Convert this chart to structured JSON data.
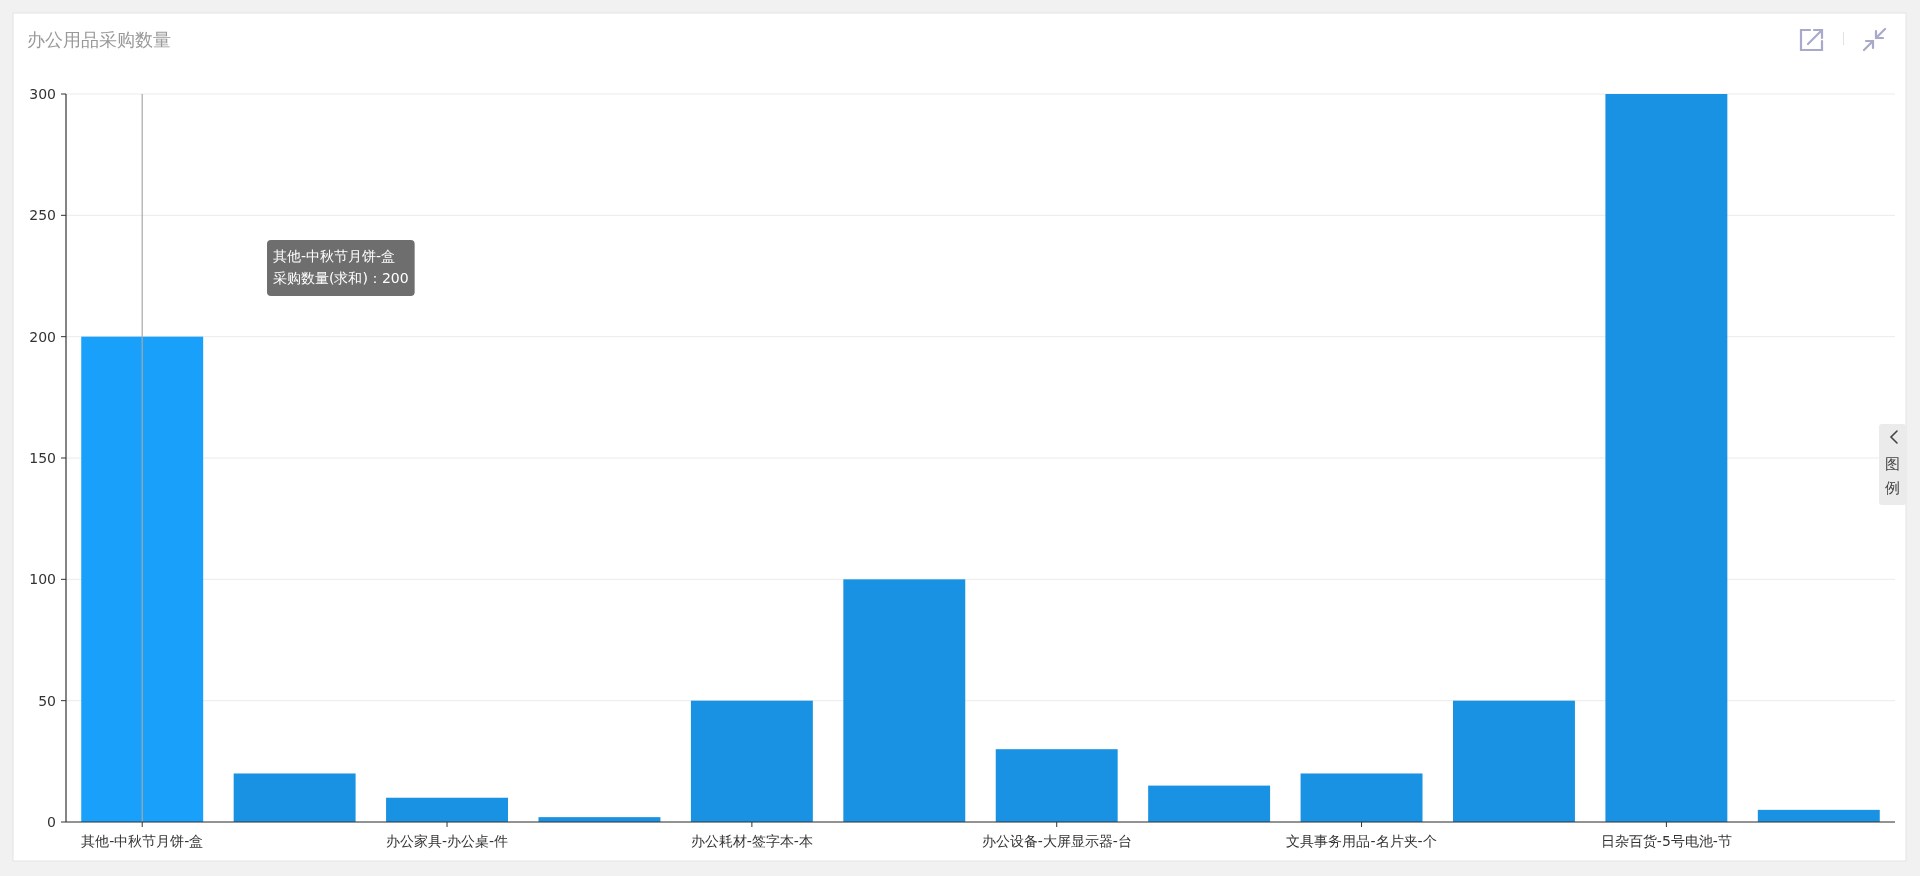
{
  "chart_data": {
    "type": "bar",
    "title": "办公用品采购数量",
    "categories": [
      "其他-中秋节月饼-盒",
      null,
      "办公家具-办公桌-件",
      null,
      "办公耗材-签字本-本",
      null,
      "办公设备-大屏显示器-台",
      null,
      "文具事务用品-名片夹-个",
      null,
      "日杂百货-5号电池-节",
      null
    ],
    "values": [
      200,
      20,
      10,
      2,
      50,
      100,
      30,
      15,
      20,
      50,
      300,
      5
    ],
    "colors": [
      "#18a0fb",
      "#1a92e3",
      "#1a92e3",
      "#1a92e3",
      "#1a92e3",
      "#1a92e3",
      "#1a92e3",
      "#1a92e3",
      "#1a92e3",
      "#1a92e3",
      "#1a92e3",
      "#1a92e3"
    ],
    "ylim": [
      0,
      300
    ],
    "yticks": [
      0,
      50,
      100,
      150,
      200,
      250,
      300
    ],
    "grid": "y",
    "ref_lines": [
      {
        "axis": "x",
        "value": "其他-中秋节月饼-盒",
        "color": "#aaaaaa"
      }
    ],
    "annotations": [
      "其他-中秋节月饼-盒",
      "采购数量(求和)：200",
      "图例"
    ]
  }
}
